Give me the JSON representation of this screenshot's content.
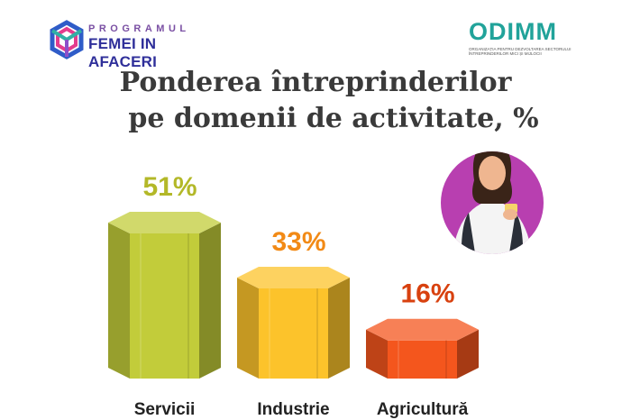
{
  "logo_left": {
    "line1": "PROGRAMUL",
    "line2": "FEMEI IN AFACERI",
    "icon": "hexagon-knot-icon"
  },
  "logo_right": {
    "brand": "ODIMM",
    "subtitle": "Organizația pentru Dezvoltarea Sectorului Întreprinderilor Mici și Mijlocii"
  },
  "title": {
    "line1": "Ponderea întreprinderilor",
    "line2": "pe domenii de activitate, %"
  },
  "illustration": {
    "icon": "businesswoman-avatar-icon",
    "circle_color": "#b83fb0"
  },
  "chart_data": {
    "type": "bar",
    "title": "Ponderea întreprinderilor pe domenii de activitate, %",
    "categories": [
      "Servicii",
      "Industrie",
      "Agricultură"
    ],
    "values": [
      51,
      33,
      16
    ],
    "value_labels": [
      "51%",
      "33%",
      "16%"
    ],
    "colors": [
      "#c2cc3a",
      "#fcc32b",
      "#f4561d"
    ],
    "label_colors": [
      "#b3b828",
      "#f28a16",
      "#d8410f"
    ]
  }
}
